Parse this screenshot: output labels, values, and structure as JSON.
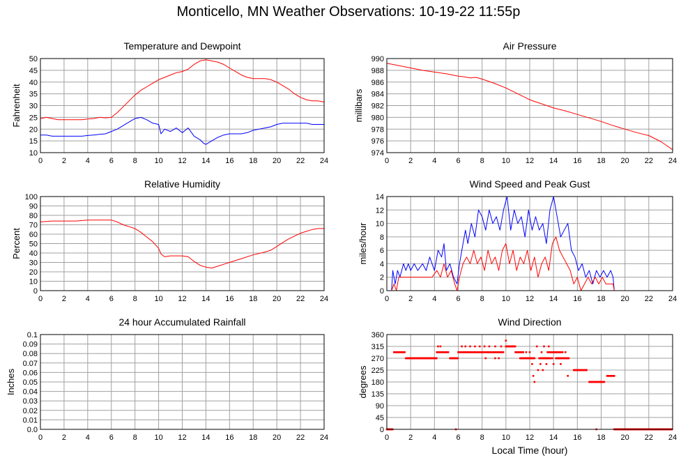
{
  "page": {
    "title": "Monticello, MN Weather Observations: 10-19-22 11:55p"
  },
  "colors": {
    "red": "#ff0000",
    "blue": "#0000ff",
    "grid": "#a0a0a0",
    "frame": "#000000"
  },
  "chart_data": [
    {
      "id": "temp",
      "type": "line",
      "title": "Temperature and Dewpoint",
      "xlabel": "",
      "ylabel": "Fahrenheit",
      "xlim": [
        0,
        24
      ],
      "ylim": [
        10,
        50
      ],
      "xticks": [
        0,
        2,
        4,
        6,
        8,
        10,
        12,
        14,
        16,
        18,
        20,
        22,
        24
      ],
      "yticks": [
        10,
        15,
        20,
        25,
        30,
        35,
        40,
        45,
        50
      ],
      "grid": true,
      "series": [
        {
          "color": "#ff0000",
          "style": "line",
          "x": [
            0,
            0.5,
            1,
            1.5,
            2,
            2.5,
            3,
            3.5,
            4,
            4.5,
            5,
            5.5,
            6,
            6.5,
            7,
            7.5,
            8,
            8.5,
            9,
            9.5,
            10,
            10.5,
            11,
            11.5,
            12,
            12.5,
            13,
            13.5,
            14,
            14.5,
            15,
            15.5,
            16,
            16.5,
            17,
            17.5,
            18,
            18.5,
            19,
            19.5,
            20,
            20.5,
            21,
            21.5,
            22,
            22.5,
            23,
            23.5,
            24
          ],
          "y": [
            24.5,
            25,
            24.5,
            24,
            24,
            24,
            24,
            24,
            24.3,
            24.5,
            25,
            24.8,
            25,
            27,
            29.5,
            32,
            34.5,
            36.5,
            38,
            39.5,
            41,
            42,
            43,
            44,
            44.5,
            45.5,
            47.5,
            49,
            49.5,
            49,
            48.5,
            47.5,
            46,
            44.5,
            43,
            42,
            41.5,
            41.5,
            41.5,
            41,
            40,
            38.5,
            37,
            35,
            33.5,
            32.5,
            32,
            32,
            31.5
          ]
        },
        {
          "color": "#0000ff",
          "style": "line",
          "x": [
            0,
            0.5,
            1,
            1.5,
            2,
            2.5,
            3,
            3.5,
            4,
            4.5,
            5,
            5.5,
            6,
            6.5,
            7,
            7.5,
            8,
            8.5,
            9,
            9.5,
            10,
            10.2,
            10.5,
            11,
            11.5,
            12,
            12.5,
            13,
            13.5,
            13.8,
            14,
            14.5,
            15,
            15.5,
            16,
            16.5,
            17,
            17.5,
            18,
            18.5,
            19,
            19.5,
            20,
            20.5,
            21,
            21.5,
            22,
            22.5,
            23,
            23.5,
            24
          ],
          "y": [
            17.5,
            17.5,
            17,
            17,
            17,
            17,
            17,
            17,
            17.3,
            17.5,
            17.8,
            18,
            19,
            20,
            21.5,
            23,
            24.5,
            25,
            24,
            22.5,
            22,
            18,
            20,
            19,
            20.5,
            18.5,
            20.5,
            17,
            15.5,
            14,
            13.5,
            15,
            16.5,
            17.5,
            18,
            18,
            18,
            18.5,
            19.5,
            20,
            20.5,
            21,
            22,
            22.5,
            22.5,
            22.5,
            22.5,
            22.5,
            22,
            22,
            22
          ]
        }
      ]
    },
    {
      "id": "pressure",
      "type": "line",
      "title": "Air Pressure",
      "xlabel": "",
      "ylabel": "millibars",
      "xlim": [
        0,
        24
      ],
      "ylim": [
        974,
        990
      ],
      "xticks": [
        0,
        2,
        4,
        6,
        8,
        10,
        12,
        14,
        16,
        18,
        20,
        22,
        24
      ],
      "yticks": [
        974,
        976,
        978,
        980,
        982,
        984,
        986,
        988,
        990
      ],
      "grid": true,
      "series": [
        {
          "color": "#ff0000",
          "style": "line",
          "x": [
            0,
            1,
            2,
            3,
            4,
            5,
            6,
            6.5,
            7,
            7.5,
            8,
            9,
            10,
            11,
            12,
            13,
            14,
            15,
            16,
            17,
            18,
            19,
            20,
            21,
            22,
            23,
            23.5,
            24
          ],
          "y": [
            989.2,
            988.8,
            988.4,
            988.0,
            987.7,
            987.4,
            987.0,
            986.9,
            986.7,
            986.8,
            986.5,
            985.8,
            985.0,
            984.0,
            983.0,
            982.3,
            981.6,
            981.1,
            980.5,
            979.9,
            979.3,
            978.6,
            978.0,
            977.4,
            976.9,
            975.9,
            975.2,
            974.5
          ]
        }
      ]
    },
    {
      "id": "humidity",
      "type": "line",
      "title": "Relative Humidity",
      "xlabel": "",
      "ylabel": "Percent",
      "xlim": [
        0,
        24
      ],
      "ylim": [
        0,
        100
      ],
      "xticks": [
        0,
        2,
        4,
        6,
        8,
        10,
        12,
        14,
        16,
        18,
        20,
        22,
        24
      ],
      "yticks": [
        0,
        10,
        20,
        30,
        40,
        50,
        60,
        70,
        80,
        90,
        100
      ],
      "grid": true,
      "series": [
        {
          "color": "#ff0000",
          "style": "line",
          "x": [
            0,
            1,
            2,
            3,
            4,
            5,
            6,
            6.5,
            7,
            7.5,
            8,
            8.5,
            9,
            9.5,
            10,
            10.2,
            10.5,
            11,
            11.5,
            12,
            12.5,
            13,
            13.5,
            14,
            14.5,
            15,
            15.5,
            16,
            17,
            18,
            19,
            19.5,
            20,
            20.5,
            21,
            21.5,
            22,
            22.5,
            23,
            23.5,
            24
          ],
          "y": [
            73,
            74,
            74,
            74,
            75,
            75,
            75,
            73,
            70,
            68,
            66,
            62,
            57,
            52,
            45,
            39,
            36,
            37,
            37,
            37,
            36,
            31,
            27,
            25,
            24,
            26,
            28,
            30,
            34,
            38,
            41,
            43,
            47,
            51,
            55,
            58,
            61,
            63,
            65,
            66,
            66
          ]
        }
      ]
    },
    {
      "id": "wind",
      "type": "line",
      "title": "Wind Speed and Peak Gust",
      "xlabel": "",
      "ylabel": "miles/hour",
      "xlim": [
        0,
        24
      ],
      "ylim": [
        0,
        14
      ],
      "xticks": [
        0,
        2,
        4,
        6,
        8,
        10,
        12,
        14,
        16,
        18,
        20,
        22,
        24
      ],
      "yticks": [
        0,
        2,
        4,
        6,
        8,
        10,
        12,
        14
      ],
      "grid": true,
      "series": [
        {
          "color": "#0000ff",
          "style": "line",
          "x": [
            0,
            0.4,
            0.5,
            0.7,
            0.9,
            1.1,
            1.4,
            1.6,
            1.8,
            2.0,
            2.3,
            2.6,
            3.0,
            3.3,
            3.6,
            4.0,
            4.3,
            4.6,
            4.8,
            5.0,
            5.3,
            5.6,
            5.9,
            6.1,
            6.4,
            6.6,
            6.8,
            7.1,
            7.4,
            7.7,
            8.0,
            8.3,
            8.6,
            8.9,
            9.2,
            9.5,
            9.8,
            10.1,
            10.4,
            10.7,
            11.0,
            11.3,
            11.6,
            11.9,
            12.2,
            12.5,
            12.8,
            13.1,
            13.4,
            13.7,
            14.0,
            14.3,
            14.6,
            14.9,
            15.2,
            15.5,
            15.8,
            16.1,
            16.4,
            16.7,
            17.0,
            17.3,
            17.6,
            17.9,
            18.2,
            18.5,
            18.8,
            19.0,
            19.1,
            20,
            22,
            24
          ],
          "y": [
            0,
            0,
            3,
            1,
            3,
            2,
            4,
            3,
            4,
            3,
            4,
            3,
            4,
            3,
            5,
            3,
            6,
            5,
            7,
            3,
            4,
            2,
            1,
            4,
            7,
            9,
            7,
            10,
            8,
            12,
            11,
            9,
            12,
            10,
            11,
            9,
            12,
            14,
            9,
            12,
            10,
            11,
            8,
            12,
            9,
            11,
            9,
            10,
            7,
            12,
            14,
            11,
            8,
            9,
            10,
            6,
            5,
            3,
            4,
            2,
            3,
            1,
            3,
            2,
            3,
            2,
            3,
            2,
            0,
            0,
            0,
            0
          ]
        },
        {
          "color": "#ff0000",
          "style": "line",
          "x": [
            0,
            0.4,
            0.6,
            0.8,
            1.0,
            1.4,
            1.8,
            2.2,
            2.6,
            3.0,
            3.4,
            3.8,
            4.2,
            4.5,
            4.8,
            5.1,
            5.4,
            5.7,
            5.9,
            6.1,
            6.4,
            6.7,
            7.0,
            7.3,
            7.6,
            7.9,
            8.2,
            8.5,
            8.8,
            9.1,
            9.4,
            9.7,
            10.0,
            10.3,
            10.6,
            10.9,
            11.2,
            11.5,
            11.8,
            12.1,
            12.4,
            12.7,
            13.0,
            13.3,
            13.6,
            13.9,
            14.2,
            14.5,
            14.8,
            15.1,
            15.4,
            15.7,
            16.0,
            16.3,
            16.6,
            16.9,
            17.2,
            17.5,
            17.8,
            18.1,
            18.4,
            18.7,
            19.0,
            19.1,
            20,
            22,
            24
          ],
          "y": [
            0,
            0,
            1,
            0,
            2,
            2,
            2,
            2,
            2,
            2,
            2,
            2,
            3,
            2,
            4,
            2,
            3,
            1,
            0,
            2,
            4,
            5,
            4,
            6,
            4,
            5,
            3,
            6,
            4,
            5,
            3,
            6,
            7,
            4,
            6,
            3,
            5,
            4,
            6,
            3,
            5,
            2,
            4,
            5,
            3,
            7,
            8,
            6,
            5,
            4,
            3,
            1,
            2,
            0,
            1,
            2,
            1,
            2,
            1,
            2,
            1,
            1,
            1,
            0,
            0,
            0,
            0
          ]
        }
      ]
    },
    {
      "id": "rain",
      "type": "line",
      "title": "24 hour Accumulated Rainfall",
      "xlabel": "",
      "ylabel": "Inches",
      "xlim": [
        0,
        24
      ],
      "ylim": [
        0,
        0.1
      ],
      "xticks": [
        0,
        2,
        4,
        6,
        8,
        10,
        12,
        14,
        16,
        18,
        20,
        22,
        24
      ],
      "yticks": [
        0,
        0.01,
        0.02,
        0.03,
        0.04,
        0.05,
        0.06,
        0.07,
        0.08,
        0.09,
        0.1
      ],
      "ytick_labels": [
        "0.0",
        "0.01",
        "0.02",
        "0.03",
        "0.04",
        "0.05",
        "0.06",
        "0.07",
        "0.08",
        "0.09",
        "0.1"
      ],
      "grid": true,
      "series": [
        {
          "color": "#ff0000",
          "style": "line",
          "x": [
            0,
            24
          ],
          "y": [
            0,
            0
          ]
        }
      ]
    },
    {
      "id": "direction",
      "type": "scatter",
      "title": "Wind Direction",
      "xlabel": "Local Time (hour)",
      "ylabel": "degrees",
      "xlim": [
        0,
        24
      ],
      "ylim": [
        0,
        360
      ],
      "xticks": [
        0,
        2,
        4,
        6,
        8,
        10,
        12,
        14,
        16,
        18,
        20,
        22,
        24
      ],
      "yticks": [
        0,
        45,
        90,
        135,
        180,
        225,
        270,
        315,
        360
      ],
      "grid": true,
      "series": [
        {
          "color": "#ff0000",
          "style": "points",
          "segments": [
            {
              "x0": 0.0,
              "x1": 0.5,
              "y": 0
            },
            {
              "x0": 0.6,
              "x1": 1.5,
              "y": 293
            },
            {
              "x0": 1.6,
              "x1": 4.2,
              "y": 270
            },
            {
              "x0": 4.2,
              "x1": 5.2,
              "y": 293
            },
            {
              "x0": 5.3,
              "x1": 6.0,
              "y": 270
            },
            {
              "x0": 6.0,
              "x1": 9.0,
              "y": 293
            },
            {
              "x0": 9.0,
              "x1": 9.8,
              "y": 293
            },
            {
              "x0": 10.0,
              "x1": 10.8,
              "y": 315
            },
            {
              "x0": 10.8,
              "x1": 11.5,
              "y": 293
            },
            {
              "x0": 11.2,
              "x1": 12.4,
              "y": 270
            },
            {
              "x0": 12.8,
              "x1": 13.8,
              "y": 270
            },
            {
              "x0": 13.5,
              "x1": 14.8,
              "y": 293
            },
            {
              "x0": 14.2,
              "x1": 15.3,
              "y": 270
            },
            {
              "x0": 15.7,
              "x1": 16.8,
              "y": 225
            },
            {
              "x0": 17.0,
              "x1": 18.3,
              "y": 180
            },
            {
              "x0": 18.5,
              "x1": 19.1,
              "y": 203
            },
            {
              "x0": 19.1,
              "x1": 24.0,
              "y": 0
            }
          ],
          "points": [
            [
              4.3,
              315
            ],
            [
              4.5,
              315
            ],
            [
              6.3,
              315
            ],
            [
              6.6,
              315
            ],
            [
              7.0,
              315
            ],
            [
              7.4,
              315
            ],
            [
              7.8,
              315
            ],
            [
              8.2,
              315
            ],
            [
              8.6,
              315
            ],
            [
              9.1,
              315
            ],
            [
              9.6,
              315
            ],
            [
              10.0,
              337
            ],
            [
              9.1,
              270
            ],
            [
              9.4,
              270
            ],
            [
              8.3,
              270
            ],
            [
              5.8,
              0
            ],
            [
              17.6,
              0
            ],
            [
              12.2,
              248
            ],
            [
              12.3,
              203
            ],
            [
              12.4,
              180
            ],
            [
              12.7,
              225
            ],
            [
              12.9,
              248
            ],
            [
              13.0,
              293
            ],
            [
              13.2,
              315
            ],
            [
              12.6,
              315
            ],
            [
              13.6,
              315
            ],
            [
              13.4,
              248
            ],
            [
              14.6,
              248
            ],
            [
              15.0,
              293
            ],
            [
              15.2,
              203
            ],
            [
              13.9,
              270
            ],
            [
              14.0,
              248
            ],
            [
              12.1,
              270
            ],
            [
              11.7,
              293
            ],
            [
              12.0,
              293
            ],
            [
              13.1,
              225
            ]
          ]
        }
      ]
    }
  ]
}
